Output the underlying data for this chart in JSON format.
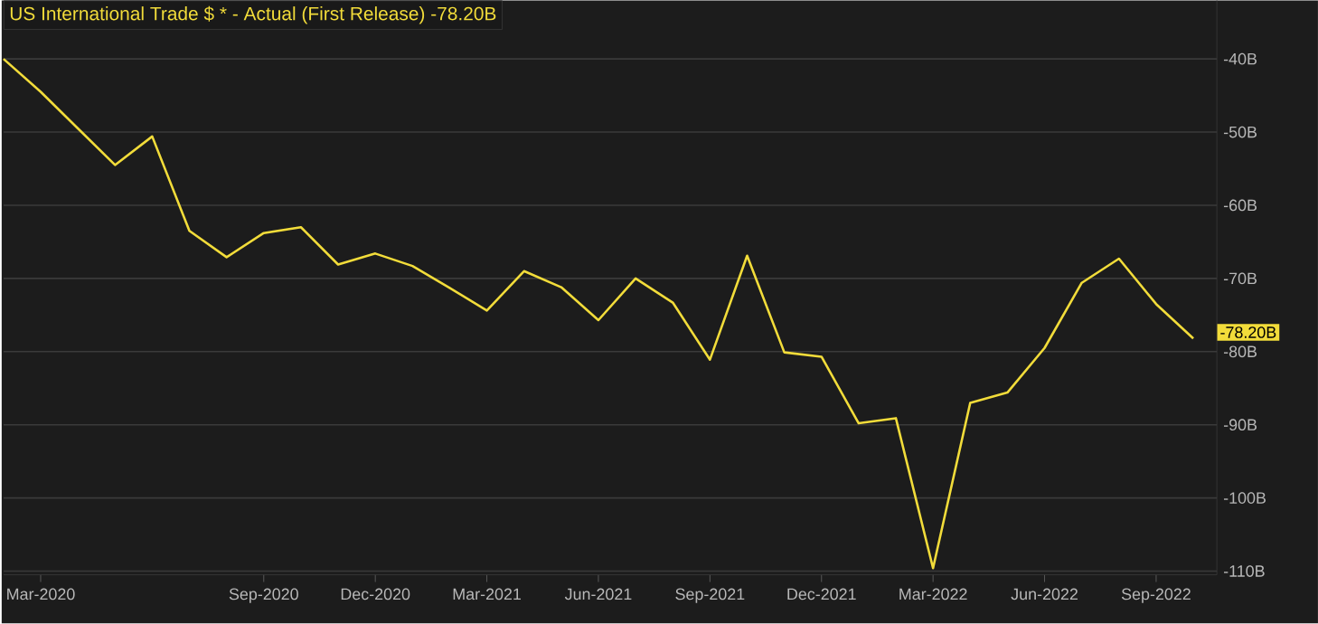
{
  "chart_data": {
    "type": "line",
    "title": "US International Trade $ * - Actual (First Release) -78.20B",
    "x": [
      "2020-02-01",
      "2020-03-01",
      "2020-04-01",
      "2020-05-01",
      "2020-06-01",
      "2020-07-01",
      "2020-08-01",
      "2020-09-01",
      "2020-10-01",
      "2020-11-01",
      "2020-12-01",
      "2021-01-01",
      "2021-02-01",
      "2021-03-01",
      "2021-04-01",
      "2021-05-01",
      "2021-06-01",
      "2021-07-01",
      "2021-08-01",
      "2021-09-01",
      "2021-10-01",
      "2021-11-01",
      "2021-12-01",
      "2022-01-01",
      "2022-02-01",
      "2022-03-01",
      "2022-04-01",
      "2022-05-01",
      "2022-06-01",
      "2022-07-01",
      "2022-08-01",
      "2022-09-01",
      "2022-10-01"
    ],
    "series": [
      {
        "color": "#f2dc3a",
        "values": [
          -40.0,
          -44.5,
          -49.5,
          -54.5,
          -50.6,
          -63.5,
          -67.1,
          -63.8,
          -63.0,
          -68.1,
          -66.6,
          -68.3,
          -71.3,
          -74.4,
          -69.0,
          -71.2,
          -75.7,
          -70.0,
          -73.3,
          -81.1,
          -66.9,
          -80.1,
          -80.7,
          -89.8,
          -89.1,
          -109.6,
          -87.0,
          -85.6,
          -79.5,
          -70.6,
          -67.3,
          -73.5,
          -78.2
        ],
        "value_labels": [
          null,
          null,
          null,
          null,
          null,
          null,
          null,
          null,
          null,
          null,
          null,
          null,
          null,
          null,
          null,
          null,
          null,
          null,
          null,
          null,
          null,
          null,
          null,
          null,
          null,
          null,
          null,
          null,
          null,
          null,
          null,
          null,
          "-78.20B"
        ]
      }
    ],
    "xlim": [
      "2020-02-01",
      "2022-10-20"
    ],
    "xticks": [
      {
        "value": "2020-03-01",
        "label": "Mar-2020"
      },
      {
        "value": "2020-09-01",
        "label": "Sep-2020"
      },
      {
        "value": "2020-12-01",
        "label": "Dec-2020"
      },
      {
        "value": "2021-03-01",
        "label": "Mar-2021"
      },
      {
        "value": "2021-06-01",
        "label": "Jun-2021"
      },
      {
        "value": "2021-09-01",
        "label": "Sep-2021"
      },
      {
        "value": "2021-12-01",
        "label": "Dec-2021"
      },
      {
        "value": "2022-03-01",
        "label": "Mar-2022"
      },
      {
        "value": "2022-06-01",
        "label": "Jun-2022"
      },
      {
        "value": "2022-09-01",
        "label": "Sep-2022"
      }
    ],
    "ylim": [
      -110.5,
      -32
    ],
    "yticks": [
      {
        "value": -40,
        "label": "-40B"
      },
      {
        "value": -50,
        "label": "-50B"
      },
      {
        "value": -60,
        "label": "-60B"
      },
      {
        "value": -70,
        "label": "-70B"
      },
      {
        "value": -80,
        "label": "-80B"
      },
      {
        "value": -90,
        "label": "-90B"
      },
      {
        "value": -100,
        "label": "-100B"
      },
      {
        "value": -110,
        "label": "-110B"
      }
    ],
    "grid": "y"
  }
}
